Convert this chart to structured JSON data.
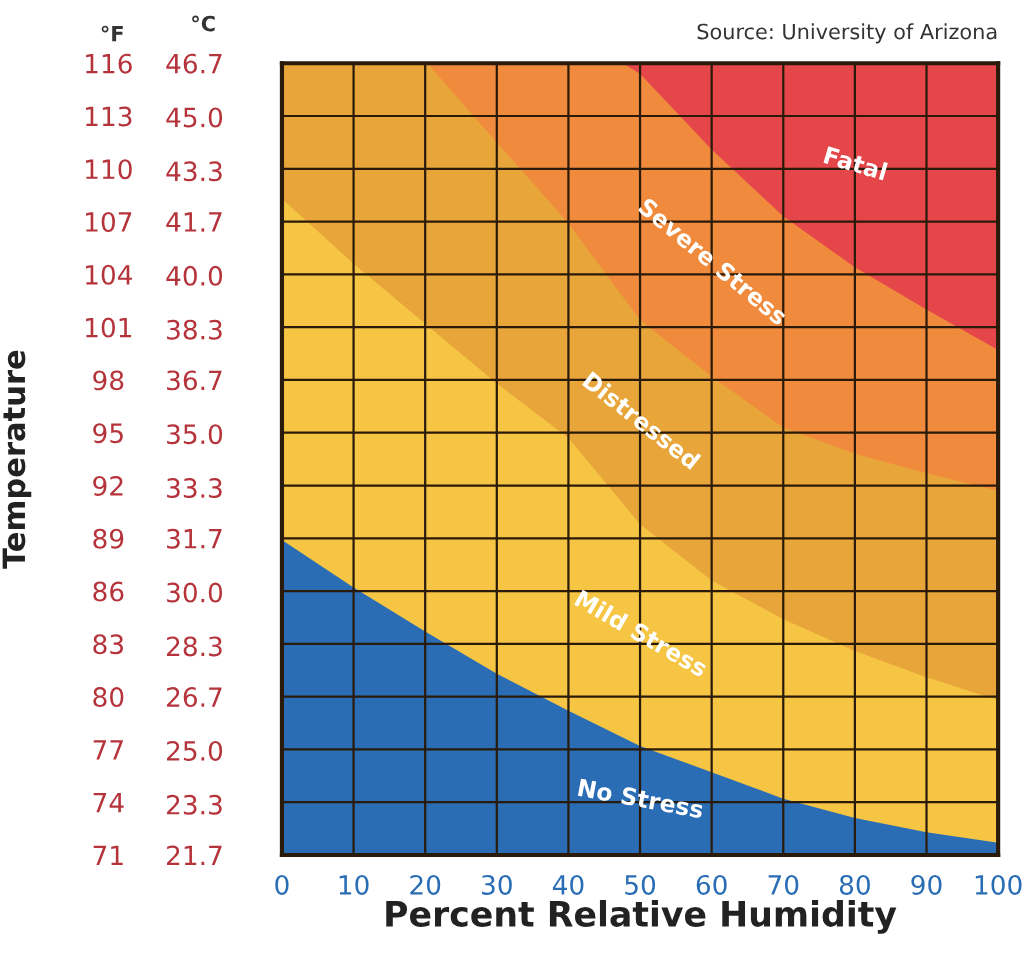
{
  "chart_data": {
    "type": "area",
    "xlabel": "Percent Relative Humidity",
    "ylabel": "Temperature",
    "y2label": "°C",
    "annotations": [
      "Source: University of Arizona",
      "°F"
    ],
    "xlim": [
      0,
      100
    ],
    "xticks": [
      0,
      10,
      20,
      30,
      40,
      50,
      60,
      70,
      80,
      90,
      100
    ],
    "ylim": [
      71,
      116
    ],
    "yticks": [
      71,
      74,
      77,
      80,
      83,
      86,
      89,
      92,
      95,
      98,
      101,
      104,
      107,
      110,
      113,
      116
    ],
    "y2lim": [
      21.7,
      46.7
    ],
    "y2ticks": [
      21.7,
      23.3,
      {
        "value": 25,
        "label": "25.0"
      },
      26.7,
      28.3,
      {
        "value": 30,
        "label": "30.0"
      },
      31.7,
      33.3,
      {
        "value": 35,
        "label": "35.0"
      },
      36.7,
      38.3,
      {
        "value": 40,
        "label": "40.0"
      },
      41.7,
      43.3,
      {
        "value": 45,
        "label": "45.0"
      },
      46.7
    ],
    "grid": true,
    "series": [
      {
        "name": "Fatal",
        "color": "#e4464a",
        "x": [
          47.6,
          50,
          60,
          70,
          80,
          90,
          100
        ],
        "values": [
          116,
          116,
          116,
          116,
          116,
          116,
          116
        ]
      },
      {
        "name": "Severe Stress",
        "color": "#f08a3c",
        "x": [
          20.3,
          30,
          40,
          47.6,
          50,
          60,
          70,
          80,
          90,
          100
        ],
        "values": [
          116,
          116,
          116,
          116,
          115.4,
          111.1,
          107.3,
          104.4,
          102,
          99.7
        ]
      },
      {
        "name": "Distressed",
        "color": "#e8a63a",
        "x": [
          0,
          10,
          20,
          20.3,
          30,
          40,
          50,
          60,
          70,
          80,
          90,
          100
        ],
        "values": [
          116,
          116,
          116,
          116,
          111.5,
          106.9,
          101.4,
          98.2,
          95.3,
          93.8,
          92.7,
          91.7
        ]
      },
      {
        "name": "Mild Stress",
        "color": "#f6c544",
        "x": [
          0,
          10,
          20,
          30,
          40,
          50,
          60,
          70,
          80,
          90,
          100
        ],
        "values": [
          108.3,
          104.6,
          101.2,
          97.8,
          94.7,
          89.8,
          86.6,
          84.4,
          82.6,
          81.1,
          79.8
        ]
      },
      {
        "name": "No Stress",
        "color": "#2a6db5",
        "x": [
          0,
          10,
          20,
          30,
          40,
          50,
          60,
          70,
          80,
          90,
          100
        ],
        "values": [
          88.9,
          86.2,
          83.7,
          81.3,
          79.2,
          77.2,
          75.7,
          74.2,
          73.1,
          72.3,
          71.7
        ]
      }
    ]
  }
}
